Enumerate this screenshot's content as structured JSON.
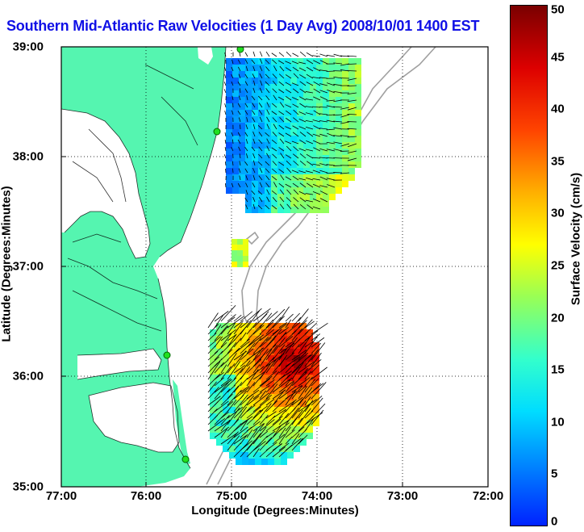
{
  "title": "Southern Mid-Atlantic Raw Velocities (1 Day Avg) 2008/10/01 1400 EST",
  "map": {
    "xlabel": "Longitude (Degrees:Minutes)",
    "ylabel": "Latitude (Degrees:Minutes)",
    "x_ticks": [
      "77:00",
      "76:00",
      "75:00",
      "74:00",
      "73:00",
      "72:00"
    ],
    "y_ticks": [
      "39:00",
      "38:00",
      "37:00",
      "36:00",
      "35:00"
    ],
    "lon_range": [
      -77,
      -72
    ],
    "lat_range": [
      35,
      39
    ],
    "grid": "dotted",
    "land_color": "#55f5b0",
    "water_color": "#ffffff",
    "isobath_color": "#a0a0a0",
    "station_color": "#20e020"
  },
  "colorbar": {
    "label": "Surface Velocity (cm/s)",
    "ticks": [
      "0",
      "5",
      "10",
      "15",
      "20",
      "25",
      "30",
      "35",
      "40",
      "45",
      "50"
    ],
    "range": [
      0,
      50
    ],
    "colormap": "jet"
  }
}
